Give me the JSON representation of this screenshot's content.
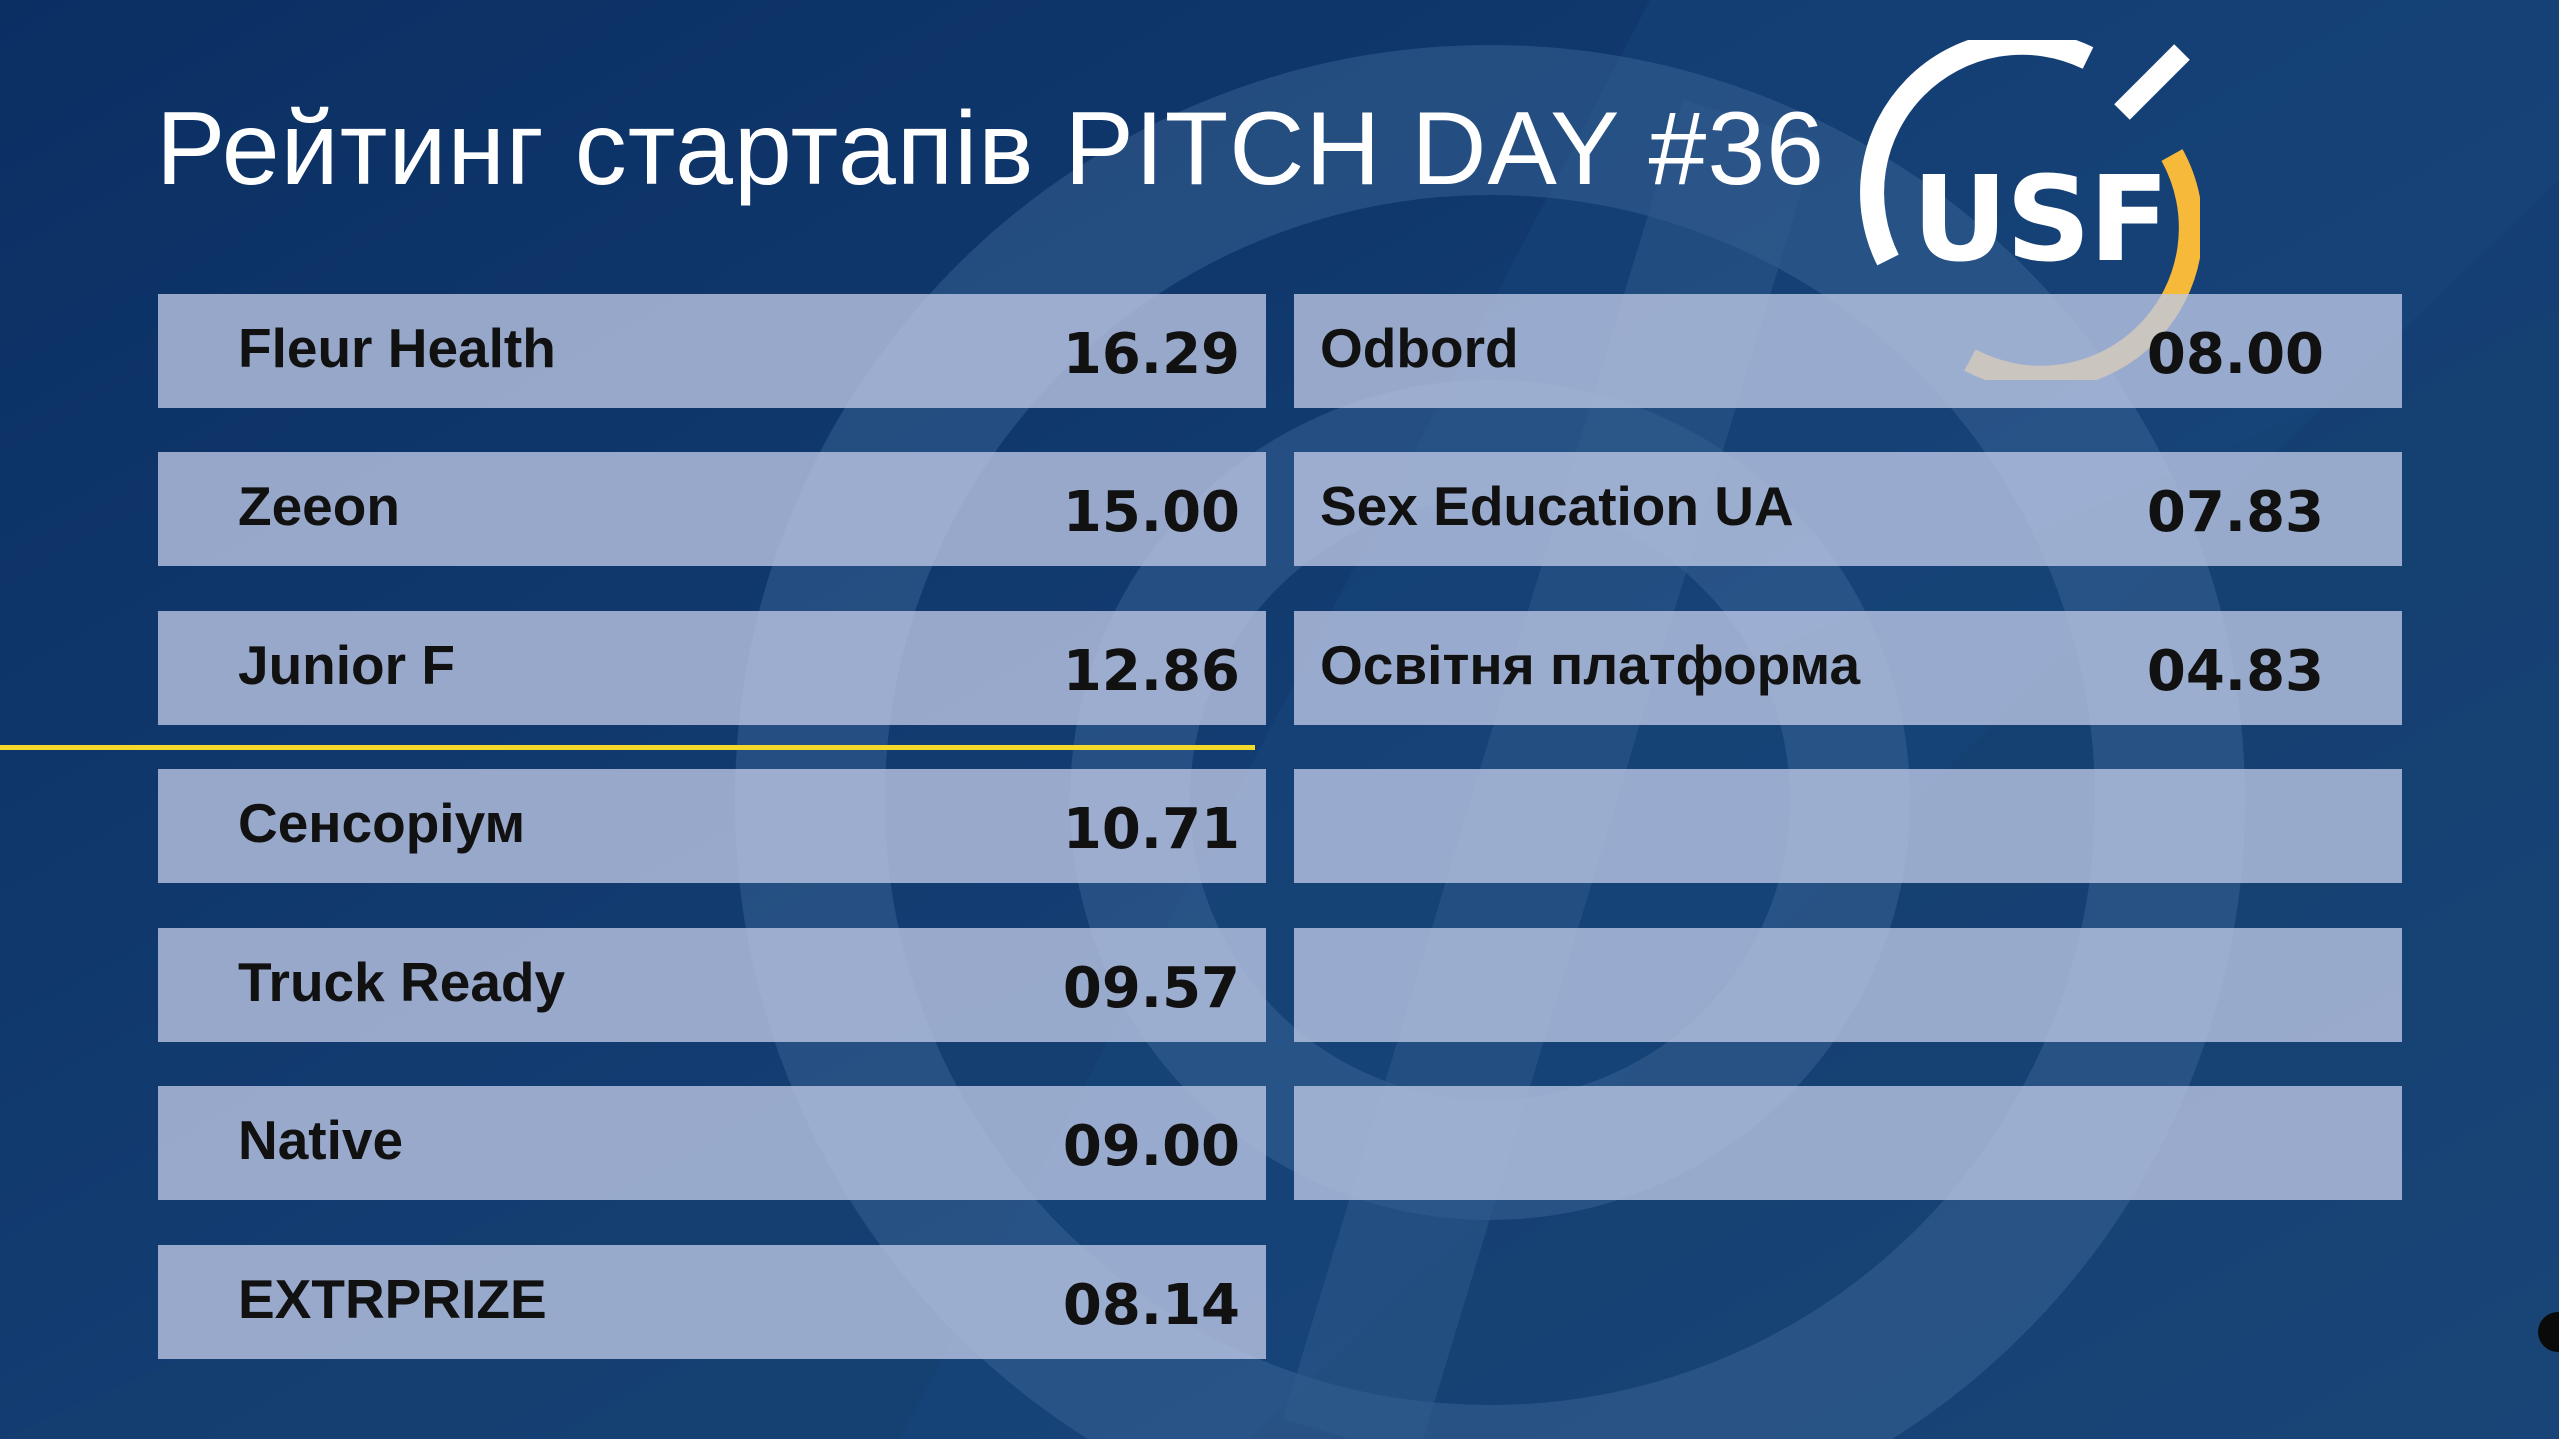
{
  "title": "Рейтинг стартапів PITCH DAY #36",
  "logo": {
    "text": "USF",
    "ring_color": "#ffffff",
    "accent_color": "#f7b93a"
  },
  "colors": {
    "background": "#0b3468",
    "divider": "#f5d92a"
  },
  "left_column": [
    {
      "name": "Fleur Health",
      "score": "16.29"
    },
    {
      "name": "Zeeon",
      "score": "15.00"
    },
    {
      "name": "Junior F",
      "score": "12.86"
    },
    {
      "name": "Сенсоріум",
      "score": "10.71"
    },
    {
      "name": "Truck Ready",
      "score": "09.57"
    },
    {
      "name": "Native",
      "score": "09.00"
    },
    {
      "name": "EXTRPRIZE",
      "score": "08.14"
    }
  ],
  "right_column": [
    {
      "name": "Odbord",
      "score": "08.00"
    },
    {
      "name": "Sex Education UA",
      "score": "07.83"
    },
    {
      "name": "Освітня платформа",
      "score": "04.83"
    },
    {
      "name": "",
      "score": ""
    },
    {
      "name": "",
      "score": ""
    },
    {
      "name": "",
      "score": ""
    }
  ]
}
